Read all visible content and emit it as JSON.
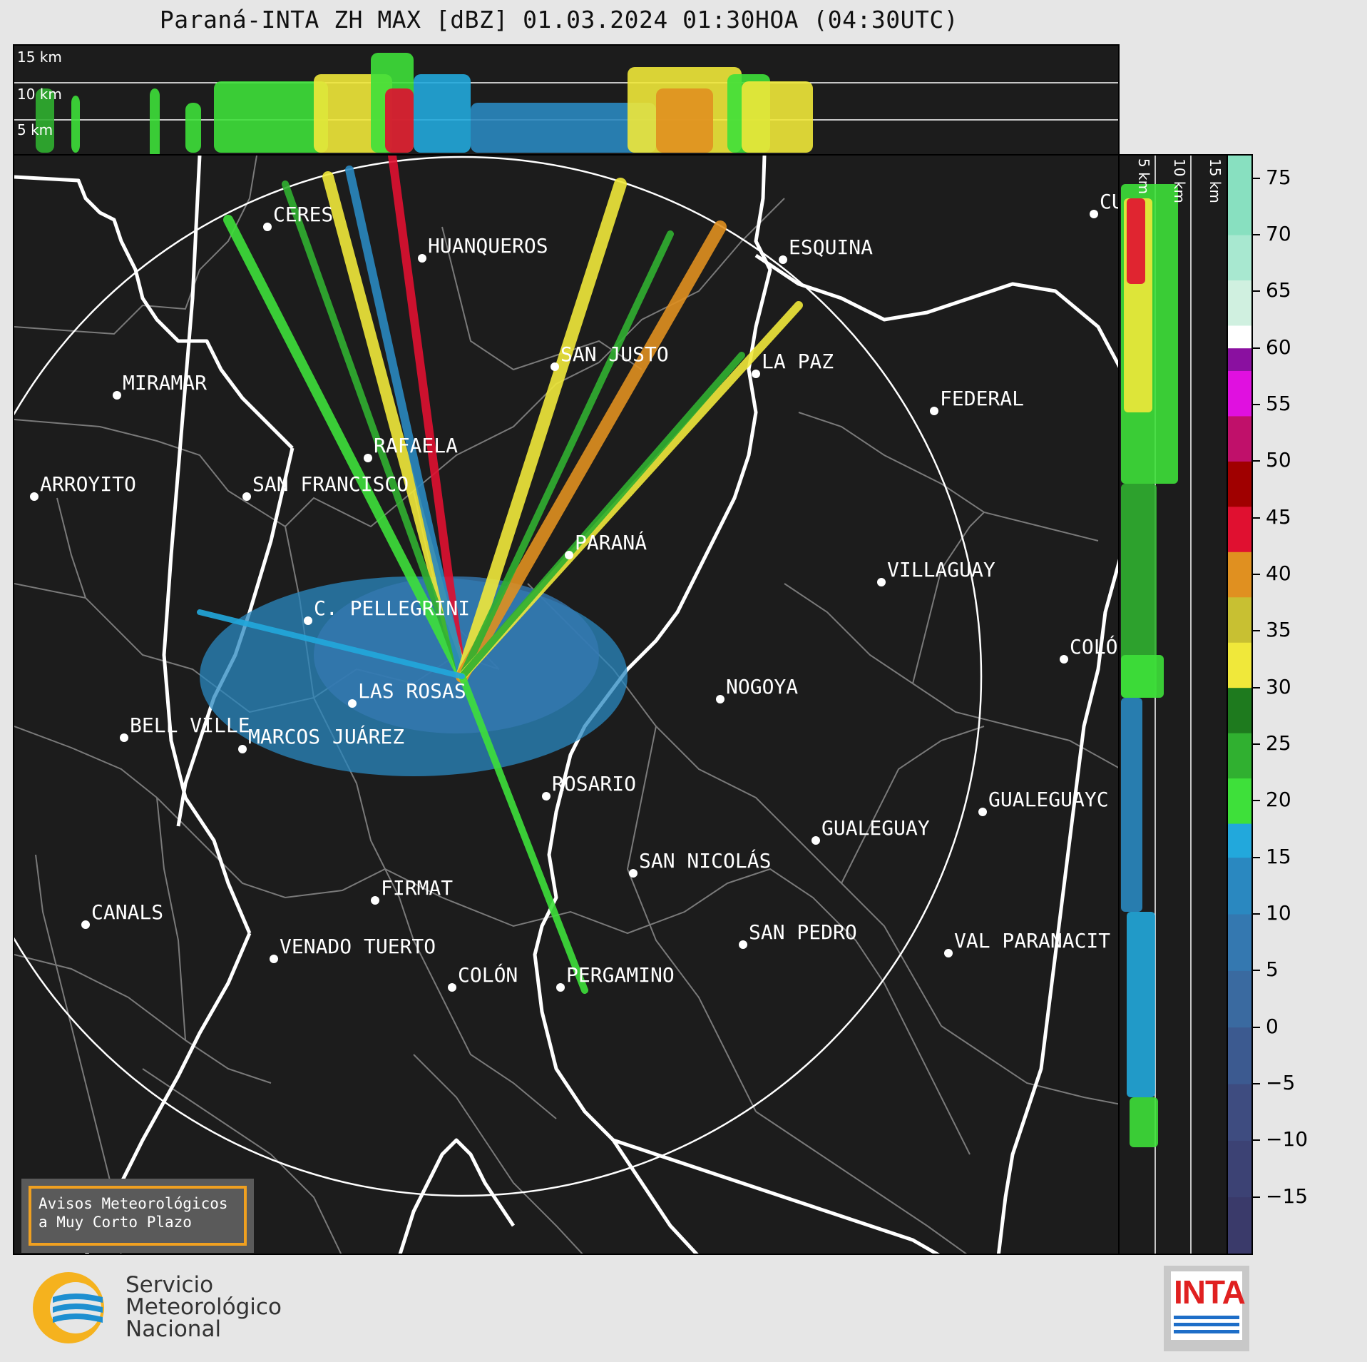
{
  "title": "Paraná-INTA ZH MAX [dBZ] 01.03.2024 01:30HOA (04:30UTC)",
  "height_labels": [
    "15 km",
    "10 km",
    "5 km"
  ],
  "colorbar": {
    "ticks": [
      "75",
      "70",
      "65",
      "60",
      "55",
      "50",
      "45",
      "40",
      "35",
      "30",
      "25",
      "20",
      "15",
      "10",
      "5",
      "0",
      "−5",
      "−10",
      "−15"
    ],
    "bands": [
      {
        "from": -20,
        "to": -15,
        "color": "#3a3a6a"
      },
      {
        "from": -15,
        "to": -10,
        "color": "#3c4274"
      },
      {
        "from": -10,
        "to": -5,
        "color": "#3e4c80"
      },
      {
        "from": -5,
        "to": 0,
        "color": "#3c5a90"
      },
      {
        "from": 0,
        "to": 5,
        "color": "#3a6aa0"
      },
      {
        "from": 5,
        "to": 10,
        "color": "#3478b0"
      },
      {
        "from": 10,
        "to": 15,
        "color": "#2a88c0"
      },
      {
        "from": 15,
        "to": 18,
        "color": "#22a8dc"
      },
      {
        "from": 18,
        "to": 22,
        "color": "#3ee03a"
      },
      {
        "from": 22,
        "to": 26,
        "color": "#30b030"
      },
      {
        "from": 26,
        "to": 30,
        "color": "#1e7a1e"
      },
      {
        "from": 30,
        "to": 34,
        "color": "#f0e83a"
      },
      {
        "from": 34,
        "to": 38,
        "color": "#c8c032"
      },
      {
        "from": 38,
        "to": 42,
        "color": "#e09020"
      },
      {
        "from": 42,
        "to": 46,
        "color": "#e01030"
      },
      {
        "from": 46,
        "to": 50,
        "color": "#a00000"
      },
      {
        "from": 50,
        "to": 54,
        "color": "#c0106a"
      },
      {
        "from": 54,
        "to": 58,
        "color": "#e010e0"
      },
      {
        "from": 58,
        "to": 60,
        "color": "#8a10a0"
      },
      {
        "from": 60,
        "to": 62,
        "color": "#ffffff"
      },
      {
        "from": 62,
        "to": 66,
        "color": "#d0f0e0"
      },
      {
        "from": 66,
        "to": 70,
        "color": "#a8e8d0"
      },
      {
        "from": 70,
        "to": 77,
        "color": "#88e0c0"
      }
    ]
  },
  "cities": [
    {
      "name": "CERES"
    },
    {
      "name": "HUANQUEROS"
    },
    {
      "name": "ESQUINA"
    },
    {
      "name": "CU"
    },
    {
      "name": "SAN JUSTO"
    },
    {
      "name": "LA PAZ"
    },
    {
      "name": "MIRAMAR"
    },
    {
      "name": "FEDERAL"
    },
    {
      "name": "RAFAELA"
    },
    {
      "name": "ARROYITO"
    },
    {
      "name": "SAN FRANCISCO"
    },
    {
      "name": "PARANÁ"
    },
    {
      "name": "VILLAGUAY"
    },
    {
      "name": "C. PELLEGRINI"
    },
    {
      "name": "COLÓ"
    },
    {
      "name": "NOGOYA"
    },
    {
      "name": "LAS ROSAS"
    },
    {
      "name": "BELL VILLE"
    },
    {
      "name": "MARCOS JUÁREZ"
    },
    {
      "name": "ROSARIO"
    },
    {
      "name": "GUALEGUAYC"
    },
    {
      "name": "GUALEGUAY"
    },
    {
      "name": "SAN NICOLÁS"
    },
    {
      "name": "FIRMAT"
    },
    {
      "name": "CANALS"
    },
    {
      "name": "SAN PEDRO"
    },
    {
      "name": "VAL PARANACIT"
    },
    {
      "name": "VENADO TUERTO"
    },
    {
      "name": "COLÓN"
    },
    {
      "name": "PERGAMINO"
    }
  ],
  "warning_box": {
    "line1": "Avisos Meteorológicos",
    "line2": "a Muy Corto Plazo"
  },
  "logos": {
    "smn": {
      "line1": "Servicio",
      "line2": "Meteorológico",
      "line3": "Nacional"
    },
    "inta": "INTA"
  }
}
